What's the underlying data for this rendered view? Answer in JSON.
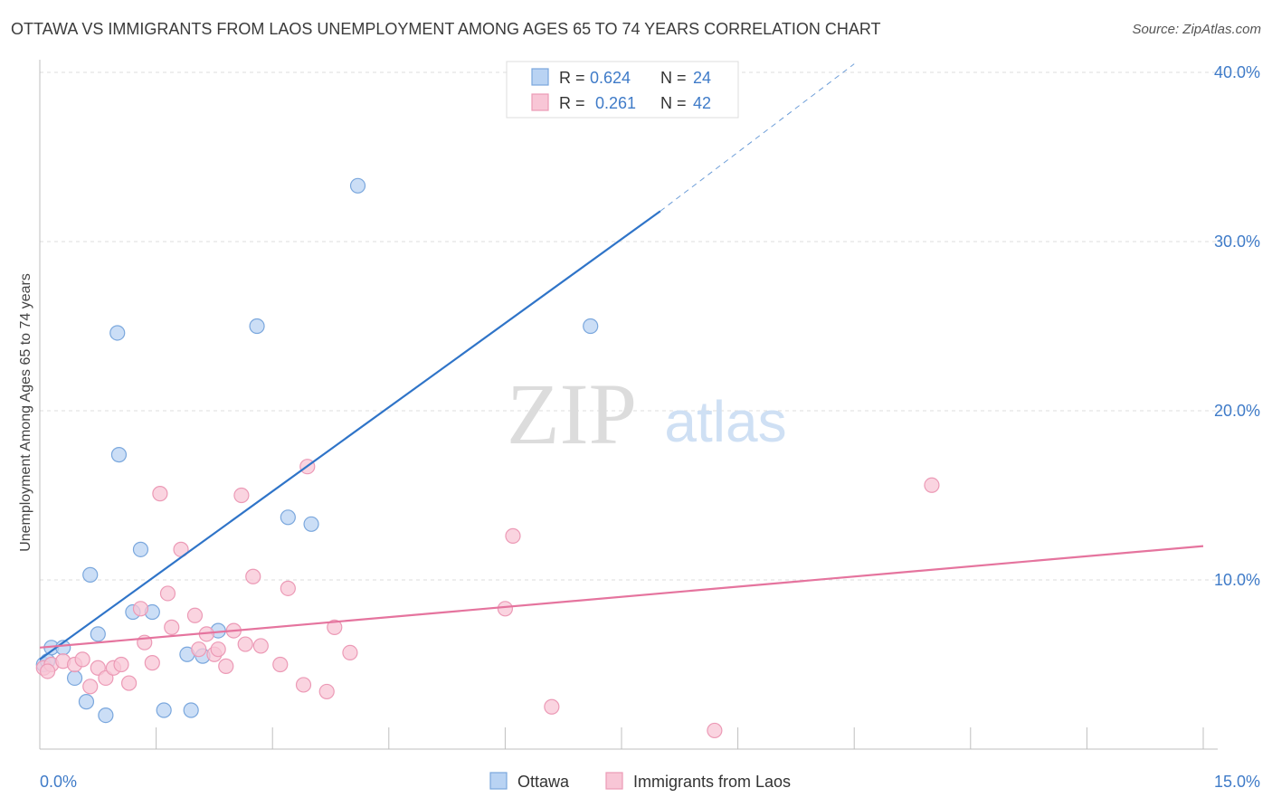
{
  "title": "OTTAWA VS IMMIGRANTS FROM LAOS UNEMPLOYMENT AMONG AGES 65 TO 74 YEARS CORRELATION CHART",
  "source": "Source: ZipAtlas.com",
  "watermark": {
    "zip": "ZIP",
    "atlas": "atlas"
  },
  "colors": {
    "ottawa_fill": "#b9d3f3",
    "ottawa_stroke": "#7aa7dd",
    "ottawa_line": "#2f74c8",
    "laos_fill": "#f8c6d6",
    "laos_stroke": "#ec9ab6",
    "laos_line": "#e5749e",
    "axis_text": "#3f7bc8",
    "grid": "#dcdcdc"
  },
  "legend": {
    "rows": [
      {
        "r_label": "R =",
        "r_value": "0.624",
        "n_label": "N =",
        "n_value": "24"
      },
      {
        "r_label": "R =",
        "r_value": "0.261",
        "n_label": "N =",
        "n_value": "42"
      }
    ]
  },
  "chart_data": {
    "type": "scatter",
    "title": "OTTAWA VS IMMIGRANTS FROM LAOS UNEMPLOYMENT AMONG AGES 65 TO 74 YEARS CORRELATION CHART",
    "xlabel": "",
    "ylabel": "Unemployment Among Ages 65 to 74 years",
    "xlim": [
      0,
      15
    ],
    "ylim": [
      0,
      40
    ],
    "x_tick_labels": [
      "0.0%",
      "15.0%"
    ],
    "y_ticks": [
      10,
      20,
      30,
      40
    ],
    "y_tick_labels": [
      "10.0%",
      "20.0%",
      "30.0%",
      "40.0%"
    ],
    "grid": true,
    "legend_position": "bottom-center",
    "series": [
      {
        "name": "Ottawa",
        "points": [
          [
            0.05,
            5.0
          ],
          [
            0.15,
            6.0
          ],
          [
            0.3,
            6.0
          ],
          [
            0.45,
            4.2
          ],
          [
            0.6,
            2.8
          ],
          [
            0.85,
            2.0
          ],
          [
            0.65,
            10.3
          ],
          [
            0.75,
            6.8
          ],
          [
            1.0,
            24.6
          ],
          [
            1.02,
            17.4
          ],
          [
            1.2,
            8.1
          ],
          [
            1.3,
            11.8
          ],
          [
            1.45,
            8.1
          ],
          [
            1.6,
            2.3
          ],
          [
            1.9,
            5.6
          ],
          [
            1.95,
            2.3
          ],
          [
            2.1,
            5.5
          ],
          [
            2.3,
            7.0
          ],
          [
            2.8,
            25.0
          ],
          [
            3.2,
            13.7
          ],
          [
            3.5,
            13.3
          ],
          [
            4.1,
            33.3
          ],
          [
            7.1,
            25.0
          ],
          [
            0.1,
            5.2
          ]
        ],
        "trend": {
          "x": [
            0.0,
            8.0
          ],
          "y": [
            5.3,
            31.8
          ],
          "dash_x": [
            8.0,
            10.5
          ],
          "dash_y": [
            31.8,
            40.5
          ]
        }
      },
      {
        "name": "Immigrants from Laos",
        "points": [
          [
            0.05,
            4.8
          ],
          [
            0.15,
            5.0
          ],
          [
            0.3,
            5.2
          ],
          [
            0.45,
            5.0
          ],
          [
            0.55,
            5.3
          ],
          [
            0.65,
            3.7
          ],
          [
            0.75,
            4.8
          ],
          [
            0.85,
            4.2
          ],
          [
            0.95,
            4.8
          ],
          [
            1.05,
            5.0
          ],
          [
            1.15,
            3.9
          ],
          [
            1.3,
            8.3
          ],
          [
            1.35,
            6.3
          ],
          [
            1.45,
            5.1
          ],
          [
            1.55,
            15.1
          ],
          [
            1.65,
            9.2
          ],
          [
            1.7,
            7.2
          ],
          [
            1.82,
            11.8
          ],
          [
            2.0,
            7.9
          ],
          [
            2.05,
            5.9
          ],
          [
            2.15,
            6.8
          ],
          [
            2.25,
            5.6
          ],
          [
            2.3,
            5.9
          ],
          [
            2.4,
            4.9
          ],
          [
            2.5,
            7.0
          ],
          [
            2.6,
            15.0
          ],
          [
            2.65,
            6.2
          ],
          [
            2.75,
            10.2
          ],
          [
            2.85,
            6.1
          ],
          [
            3.1,
            5.0
          ],
          [
            3.2,
            9.5
          ],
          [
            3.4,
            3.8
          ],
          [
            3.45,
            16.7
          ],
          [
            3.7,
            3.4
          ],
          [
            3.8,
            7.2
          ],
          [
            4.0,
            5.7
          ],
          [
            6.0,
            8.3
          ],
          [
            6.1,
            12.6
          ],
          [
            6.6,
            2.5
          ],
          [
            8.7,
            1.1
          ],
          [
            11.5,
            15.6
          ],
          [
            0.1,
            4.6
          ]
        ],
        "trend": {
          "x": [
            0.0,
            15.0
          ],
          "y": [
            6.0,
            12.0
          ]
        }
      }
    ]
  }
}
